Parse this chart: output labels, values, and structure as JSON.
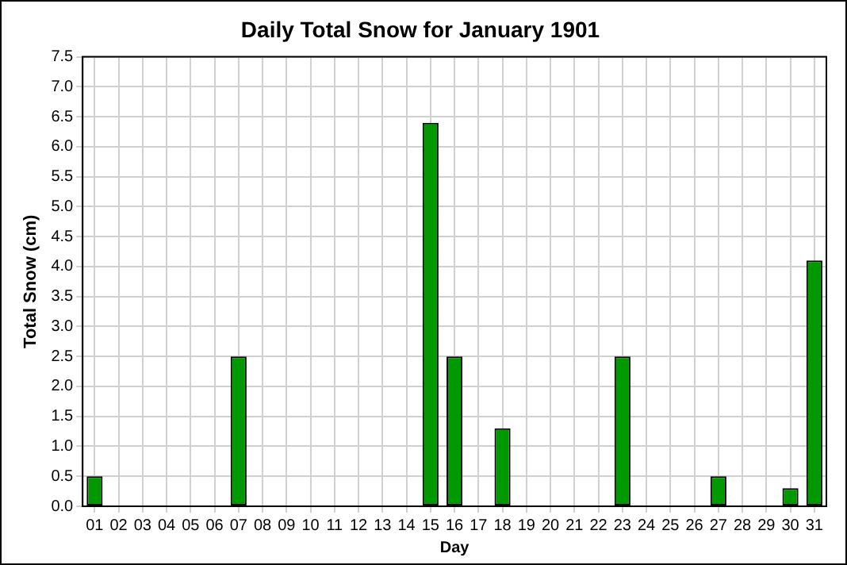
{
  "chart_data": {
    "type": "bar",
    "title": "Daily Total Snow for January 1901",
    "xlabel": "Day",
    "ylabel": "Total Snow (cm)",
    "categories": [
      "01",
      "02",
      "03",
      "04",
      "05",
      "06",
      "07",
      "08",
      "09",
      "10",
      "11",
      "12",
      "13",
      "14",
      "15",
      "16",
      "17",
      "18",
      "19",
      "20",
      "21",
      "22",
      "23",
      "24",
      "25",
      "26",
      "27",
      "28",
      "29",
      "30",
      "31"
    ],
    "values": [
      0.5,
      0,
      0,
      0,
      0,
      0,
      2.5,
      0,
      0,
      0,
      0,
      0,
      0,
      0,
      6.4,
      2.5,
      0,
      1.3,
      0,
      0,
      0,
      0,
      2.5,
      0,
      0,
      0,
      0.5,
      0,
      0,
      0.3,
      4.1
    ],
    "color": "#009900",
    "ylim": [
      0,
      7.5
    ],
    "yticks": [
      {
        "value": 0,
        "label": "0.0"
      },
      0.5,
      {
        "value": 1,
        "label": "1.0"
      },
      1.5,
      {
        "value": 2,
        "label": "2.0"
      },
      2.5,
      {
        "value": 3,
        "label": "3.0"
      },
      3.5,
      {
        "value": 4,
        "label": "4.0"
      },
      4.5,
      {
        "value": 5,
        "label": "5.0"
      },
      5.5,
      {
        "value": 6,
        "label": "6.0"
      },
      6.5,
      {
        "value": 7,
        "label": "7.0"
      },
      7.5
    ],
    "grid": true,
    "legend": false
  }
}
